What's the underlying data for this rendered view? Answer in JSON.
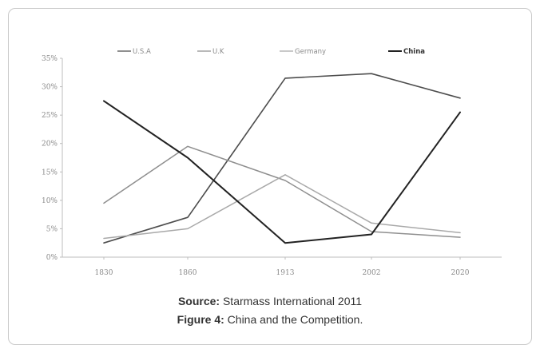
{
  "chart_data": {
    "type": "line",
    "categories": [
      "1830",
      "1860",
      "1913",
      "2002",
      "2020"
    ],
    "yticks": [
      "0%",
      "5%",
      "10%",
      "15%",
      "20%",
      "25%",
      "30%",
      "35%"
    ],
    "ylim": [
      0,
      35
    ],
    "legend_position": "top",
    "series": [
      {
        "name": "U.S.A",
        "color": "#4d4d4d",
        "width": 1.6,
        "bold": false,
        "values": [
          2.5,
          7.0,
          31.5,
          32.3,
          28.0
        ]
      },
      {
        "name": "U.K",
        "color": "#8f8f8f",
        "width": 1.5,
        "bold": false,
        "values": [
          9.5,
          19.5,
          13.5,
          4.5,
          3.5
        ]
      },
      {
        "name": "Germany",
        "color": "#a9a9a9",
        "width": 1.5,
        "bold": false,
        "values": [
          3.3,
          5.0,
          14.5,
          6.0,
          4.3
        ]
      },
      {
        "name": "China",
        "color": "#222222",
        "width": 2.0,
        "bold": true,
        "values": [
          27.5,
          17.5,
          2.5,
          4.0,
          25.5
        ]
      }
    ]
  },
  "caption": {
    "source_label": "Source:",
    "source_text": " Starmass International 2011",
    "figure_label": "Figure 4:",
    "figure_text": " China and the Competition."
  }
}
